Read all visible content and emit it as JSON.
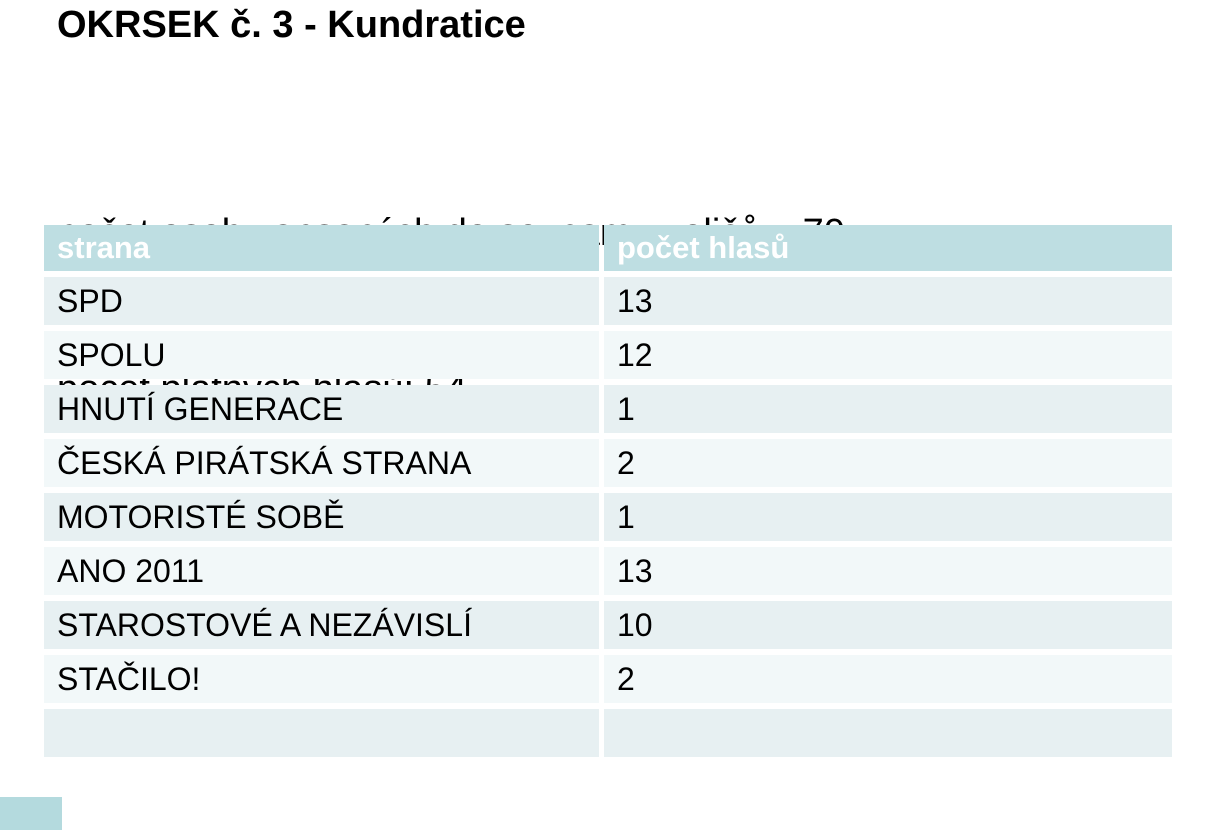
{
  "page": {
    "title": "OKRSEK č. 3 - Kundratice",
    "subtitle_line_1": "počet osob zapsaných do seznamu voličů  : 70",
    "subtitle_line_2": "počet platných hlasů: 54"
  },
  "stats": {
    "registered_voters": 70,
    "valid_votes": 54
  },
  "table": {
    "columns": [
      "strana",
      "počet hlasů"
    ],
    "rows": [
      {
        "strana": "SPD",
        "pocet": "13"
      },
      {
        "strana": "SPOLU",
        "pocet": "12"
      },
      {
        "strana": "HNUTÍ GENERACE",
        "pocet": "1"
      },
      {
        "strana": "ČESKÁ PIRÁTSKÁ STRANA",
        "pocet": "2"
      },
      {
        "strana": "MOTORISTÉ SOBĚ",
        "pocet": "1"
      },
      {
        "strana": "ANO 2011",
        "pocet": "13"
      },
      {
        "strana": "STAROSTOVÉ A NEZÁVISLÍ",
        "pocet": "10"
      },
      {
        "strana": "STAČILO!",
        "pocet": "2"
      },
      {
        "strana": "",
        "pocet": ""
      }
    ]
  },
  "colors": {
    "header_background": "#bedee2",
    "header_text": "#ffffff",
    "row_dark": "#e7f0f2",
    "row_light": "#f2f8f9",
    "body_text": "#000000",
    "page_background": "#ffffff",
    "bottom_fragment": "#b4dade"
  }
}
